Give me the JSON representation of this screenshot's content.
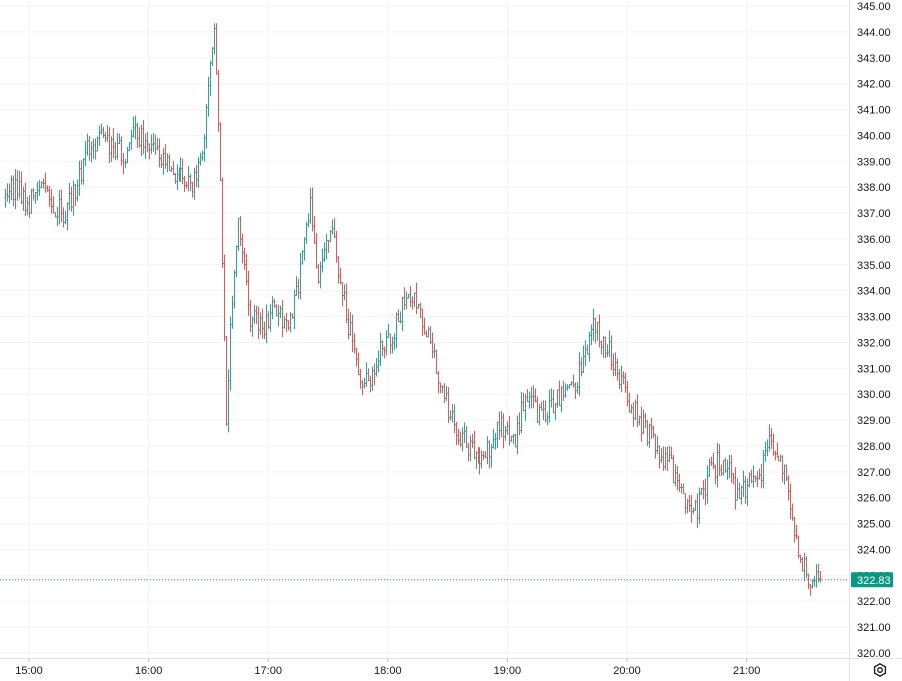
{
  "chart_data": {
    "type": "ohlc",
    "title": "",
    "xlabel": "",
    "ylabel": "",
    "ylim": [
      320,
      345
    ],
    "y_ticks": [
      "320.00",
      "321.00",
      "322.00",
      "323.00",
      "324.00",
      "325.00",
      "326.00",
      "327.00",
      "328.00",
      "329.00",
      "330.00",
      "331.00",
      "332.00",
      "333.00",
      "334.00",
      "335.00",
      "336.00",
      "337.00",
      "338.00",
      "339.00",
      "340.00",
      "341.00",
      "342.00",
      "343.00",
      "344.00",
      "345.00"
    ],
    "x_ticks": [
      "15:00",
      "16:00",
      "17:00",
      "18:00",
      "19:00",
      "20:00",
      "21:00"
    ],
    "last_price": {
      "value": 322.83,
      "label": "322.83"
    },
    "grid": true,
    "colors": {
      "up": "#26a69a",
      "down": "#ef5350",
      "grid": "#f0f3fa",
      "last_price": "#089981",
      "axis_text": "#131722"
    },
    "keyframes": [
      [
        "14:48",
        337.6
      ],
      [
        "14:55",
        338.1
      ],
      [
        "15:00",
        337.2
      ],
      [
        "15:06",
        338.0
      ],
      [
        "15:12",
        337.4
      ],
      [
        "15:18",
        337.0
      ],
      [
        "15:24",
        337.8
      ],
      [
        "15:30",
        339.4
      ],
      [
        "15:36",
        339.8
      ],
      [
        "15:42",
        339.7
      ],
      [
        "15:48",
        339.2
      ],
      [
        "15:54",
        340.0
      ],
      [
        "16:00",
        339.8
      ],
      [
        "16:06",
        339.0
      ],
      [
        "16:12",
        338.6
      ],
      [
        "16:18",
        338.3
      ],
      [
        "16:24",
        338.2
      ],
      [
        "16:28",
        339.0
      ],
      [
        "16:31",
        342.0
      ],
      [
        "16:34",
        344.0
      ],
      [
        "16:37",
        338.0
      ],
      [
        "16:40",
        329.0
      ],
      [
        "16:42",
        332.5
      ],
      [
        "16:46",
        337.0
      ],
      [
        "16:52",
        333.0
      ],
      [
        "16:58",
        332.5
      ],
      [
        "17:04",
        333.5
      ],
      [
        "17:10",
        332.5
      ],
      [
        "17:16",
        334.0
      ],
      [
        "17:22",
        337.5
      ],
      [
        "17:26",
        334.5
      ],
      [
        "17:32",
        336.5
      ],
      [
        "17:38",
        334.0
      ],
      [
        "17:44",
        331.5
      ],
      [
        "17:48",
        330.0
      ],
      [
        "17:56",
        331.5
      ],
      [
        "18:04",
        332.5
      ],
      [
        "18:10",
        334.0
      ],
      [
        "18:16",
        333.5
      ],
      [
        "18:22",
        332.0
      ],
      [
        "18:28",
        330.0
      ],
      [
        "18:34",
        329.0
      ],
      [
        "18:40",
        328.0
      ],
      [
        "18:46",
        327.5
      ],
      [
        "18:52",
        328.0
      ],
      [
        "18:58",
        328.8
      ],
      [
        "19:04",
        328.0
      ],
      [
        "19:10",
        330.0
      ],
      [
        "19:16",
        329.2
      ],
      [
        "19:22",
        329.5
      ],
      [
        "19:28",
        330.0
      ],
      [
        "19:34",
        330.3
      ],
      [
        "19:40",
        331.5
      ],
      [
        "19:44",
        332.8
      ],
      [
        "19:50",
        332.0
      ],
      [
        "19:56",
        331.0
      ],
      [
        "20:00",
        330.0
      ],
      [
        "20:08",
        328.9
      ],
      [
        "20:16",
        328.0
      ],
      [
        "20:24",
        327.0
      ],
      [
        "20:30",
        326.0
      ],
      [
        "20:36",
        325.5
      ],
      [
        "20:42",
        327.0
      ],
      [
        "20:46",
        327.3
      ],
      [
        "20:52",
        327.0
      ],
      [
        "20:56",
        326.0
      ],
      [
        "21:02",
        326.5
      ],
      [
        "21:08",
        327.0
      ],
      [
        "21:12",
        328.5
      ],
      [
        "21:16",
        327.8
      ],
      [
        "21:20",
        327.0
      ],
      [
        "21:24",
        325.0
      ],
      [
        "21:28",
        323.8
      ],
      [
        "21:32",
        322.8
      ],
      [
        "21:37",
        322.83
      ]
    ]
  },
  "ui": {
    "settings_icon": "gear-icon"
  }
}
